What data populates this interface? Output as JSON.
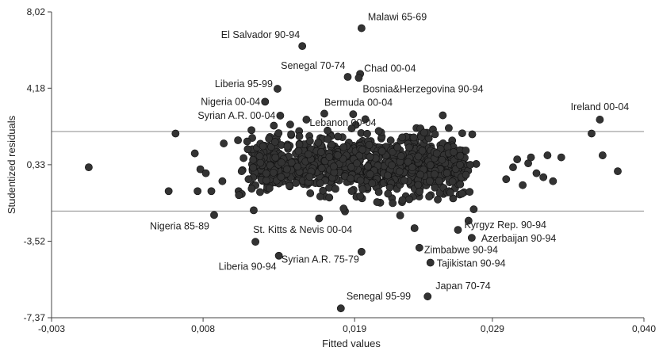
{
  "chart_data": {
    "type": "scatter",
    "title": "",
    "xlabel": "Fitted values",
    "ylabel": "Studentized residuals",
    "xlim": [
      -0.003,
      0.04
    ],
    "ylim": [
      -7.37,
      8.02
    ],
    "xticks": [
      "-0,003",
      "0,008",
      "0,019",
      "0,029",
      "0,040"
    ],
    "xtick_values": [
      -0.003,
      0.008,
      0.019,
      0.029,
      0.04
    ],
    "yticks": [
      "8,02",
      "4,18",
      "0,33",
      "-3,52",
      "-7,37"
    ],
    "ytick_values": [
      8.02,
      4.18,
      0.33,
      -3.52,
      -7.37
    ],
    "reference_lines_y": [
      2.0,
      -2.0
    ],
    "grid": false,
    "legend": "none",
    "point_color": "#333333",
    "labeled_points": [
      {
        "label": "Malawi 65-69",
        "x": 0.0195,
        "y": 7.2
      },
      {
        "label": "El Salvador 90-94",
        "x": 0.0152,
        "y": 6.3
      },
      {
        "label": "Senegal 70-74",
        "x": 0.0185,
        "y": 4.75
      },
      {
        "label": "Chad 00-04",
        "x": 0.0194,
        "y": 4.9
      },
      {
        "label": "Bosnia&Herzegovina 90-94",
        "x": 0.0193,
        "y": 4.7
      },
      {
        "label": "Liberia 95-99",
        "x": 0.0134,
        "y": 4.15
      },
      {
        "label": "Nigeria 00-04",
        "x": 0.0125,
        "y": 3.5
      },
      {
        "label": "Bermuda 00-04",
        "x": 0.0168,
        "y": 2.9
      },
      {
        "label": "Syrian A.R. 00-04",
        "x": 0.0136,
        "y": 2.8
      },
      {
        "label": "Lebanon 00-04",
        "x": 0.0155,
        "y": 2.6
      },
      {
        "label": "Ireland 00-04",
        "x": 0.0368,
        "y": 2.6
      },
      {
        "label": "Nigeria 85-89",
        "x": 0.0088,
        "y": -2.2
      },
      {
        "label": "St. Kitts & Nevis 00-04",
        "x": 0.0118,
        "y": -3.55
      },
      {
        "label": "Liberia 90-94",
        "x": 0.0135,
        "y": -4.25
      },
      {
        "label": "Syrian A.R. 75-79",
        "x": 0.0195,
        "y": -4.05
      },
      {
        "label": "Kyrgyz Rep. 90-94",
        "x": 0.0265,
        "y": -2.95
      },
      {
        "label": "Azerbaijan 90-94",
        "x": 0.0275,
        "y": -3.35
      },
      {
        "label": "Zimbabwe 90-94",
        "x": 0.0237,
        "y": -3.85
      },
      {
        "label": "Tajikistan 90-94",
        "x": 0.0245,
        "y": -4.6
      },
      {
        "label": "Japan 70-74",
        "x": 0.0243,
        "y": -6.3
      },
      {
        "label": "Senegal 95-99",
        "x": 0.018,
        "y": -6.9
      }
    ],
    "other_points_y_range": [
      -3.3,
      3.0
    ],
    "other_points_x_range": [
      -0.001,
      0.0375
    ]
  }
}
